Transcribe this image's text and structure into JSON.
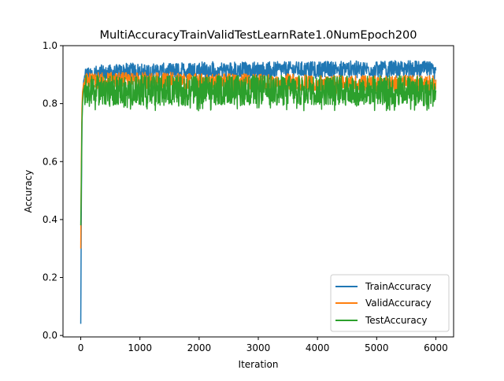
{
  "chart_data": {
    "type": "line",
    "title": "MultiAccuracyTrainValidTestLearnRate1.0NumEpoch200",
    "xlabel": "Iteration",
    "ylabel": "Accuracy",
    "xlim": [
      -300,
      6300
    ],
    "ylim": [
      -0.005,
      1.0
    ],
    "xticks": [
      0,
      1000,
      2000,
      3000,
      4000,
      5000,
      6000
    ],
    "xtick_labels": [
      "0",
      "1000",
      "2000",
      "3000",
      "4000",
      "5000",
      "6000"
    ],
    "yticks": [
      0.0,
      0.2,
      0.4,
      0.6,
      0.8,
      1.0
    ],
    "ytick_labels": [
      "0.0",
      "0.2",
      "0.4",
      "0.6",
      "0.8",
      "1.0"
    ],
    "grid": false,
    "legend_placement": "lower-right",
    "series": [
      {
        "name": "TrainAccuracy",
        "color": "#1f77b4",
        "x": [
          0,
          10,
          20,
          30,
          50,
          80,
          120,
          200,
          400,
          600,
          800,
          1000,
          1200,
          1500,
          2000,
          2500,
          3000,
          3500,
          4000,
          4400,
          5000,
          5500,
          5900,
          6000
        ],
        "y": [
          0.04,
          0.45,
          0.72,
          0.82,
          0.88,
          0.9,
          0.905,
          0.905,
          0.91,
          0.91,
          0.915,
          0.915,
          0.915,
          0.915,
          0.92,
          0.92,
          0.92,
          0.92,
          0.92,
          0.925,
          0.92,
          0.925,
          0.92,
          0.9
        ],
        "noise_band": [
          -0.035,
          0.025
        ]
      },
      {
        "name": "ValidAccuracy",
        "color": "#ff7f0e",
        "x": [
          0,
          10,
          20,
          30,
          50,
          80,
          120,
          200,
          400,
          600,
          800,
          1000,
          1200,
          1500,
          2000,
          2500,
          3000,
          3500,
          4000,
          4500,
          5000,
          5500,
          6000
        ],
        "y": [
          0.3,
          0.6,
          0.78,
          0.84,
          0.87,
          0.88,
          0.885,
          0.885,
          0.885,
          0.885,
          0.885,
          0.885,
          0.885,
          0.885,
          0.88,
          0.88,
          0.88,
          0.88,
          0.875,
          0.875,
          0.875,
          0.875,
          0.875
        ],
        "noise_band": [
          -0.04,
          0.02
        ]
      },
      {
        "name": "TestAccuracy",
        "color": "#2ca02c",
        "x": [
          0,
          10,
          20,
          30,
          50,
          80,
          120,
          200,
          400,
          600,
          800,
          1000,
          1200,
          1500,
          2000,
          2500,
          3000,
          3500,
          4000,
          4500,
          5000,
          5500,
          6000
        ],
        "y": [
          0.38,
          0.53,
          0.73,
          0.8,
          0.85,
          0.86,
          0.86,
          0.855,
          0.855,
          0.855,
          0.855,
          0.855,
          0.855,
          0.855,
          0.855,
          0.855,
          0.855,
          0.855,
          0.855,
          0.855,
          0.855,
          0.855,
          0.85
        ],
        "noise_band": [
          -0.08,
          0.035
        ]
      }
    ]
  }
}
